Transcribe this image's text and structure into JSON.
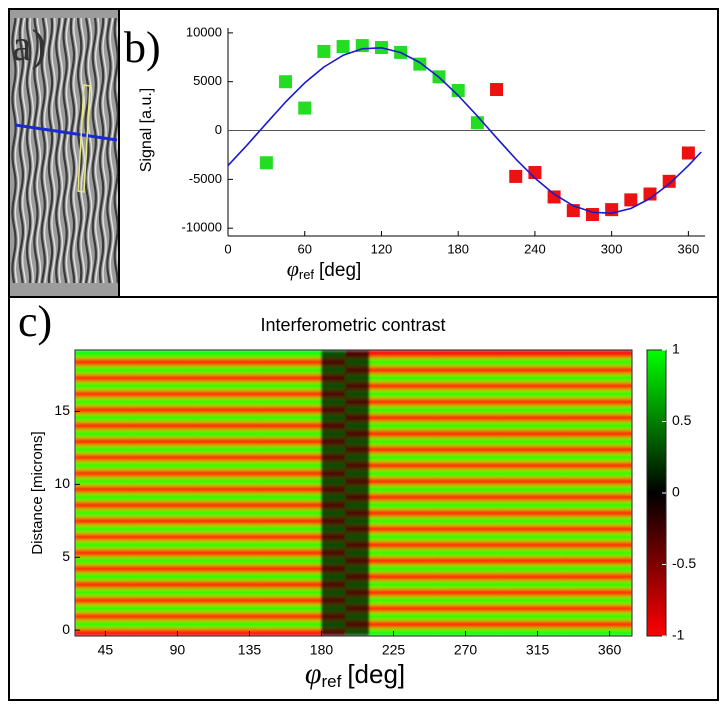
{
  "chart_data": [
    {
      "type": "image",
      "panel_label": "a)"
    },
    {
      "type": "scatter",
      "panel_label": "b)",
      "ylabel": "Signal [a.u.]",
      "xlabel": {
        "symbol": "φ",
        "subscript": "ref",
        "unit": "[deg]"
      },
      "xlim": [
        0,
        373
      ],
      "xticks": [
        0,
        60,
        120,
        180,
        240,
        300,
        360
      ],
      "ylim": [
        -10800,
        10500
      ],
      "yticks": [
        -10000,
        -5000,
        0,
        5000,
        10000
      ],
      "reference_line": 0,
      "series": [
        {
          "color": "#22dd22",
          "x": [
            30,
            45,
            60,
            75,
            90,
            105,
            120,
            135,
            150,
            165,
            180,
            195
          ],
          "values": [
            -3300,
            5000,
            2300,
            8100,
            8600,
            8700,
            8500,
            8000,
            6800,
            5500,
            4100,
            800
          ]
        },
        {
          "color": "#ee1111",
          "x": [
            210,
            225,
            240,
            255,
            270,
            285,
            300,
            315,
            330,
            345,
            360
          ],
          "values": [
            4200,
            -4700,
            -4300,
            -6800,
            -8200,
            -8600,
            -8100,
            -7100,
            -6500,
            -5200,
            -2300
          ]
        },
        {
          "type": "line",
          "color": "#1a1acc",
          "x": [
            0,
            15,
            30,
            45,
            60,
            75,
            90,
            105,
            120,
            135,
            150,
            165,
            180,
            195,
            210,
            225,
            240,
            255,
            270,
            285,
            300,
            315,
            330,
            345,
            360,
            370
          ],
          "values": [
            -3592,
            -1476,
            741,
            2907,
            4875,
            6511,
            7704,
            8371,
            8468,
            7987,
            6963,
            5464,
            3592,
            1476,
            -741,
            -2907,
            -4875,
            -6511,
            -7704,
            -8371,
            -8468,
            -7987,
            -6963,
            -5464,
            -3592,
            -2200
          ]
        }
      ]
    },
    {
      "type": "heatmap",
      "panel_label": "c)",
      "title": "Interferometric contrast",
      "ylabel": "Distance [microns]",
      "xlabel": {
        "symbol": "φ",
        "subscript": "ref",
        "unit": "[deg]"
      },
      "xlim": [
        26,
        374
      ],
      "xticks": [
        45,
        90,
        135,
        180,
        225,
        270,
        315,
        360
      ],
      "ylim": [
        -0.4,
        19.22
      ],
      "yticks": [
        0,
        5,
        10,
        15
      ],
      "clim": [
        -1,
        1
      ],
      "cticks": [
        1,
        0.5,
        0,
        -0.5,
        -1
      ],
      "colormap": [
        "#ff0000",
        "#000000",
        "#00ff00"
      ],
      "x_edges": [
        26,
        60,
        100,
        140,
        180,
        195,
        210,
        250,
        290,
        330,
        374
      ],
      "y_edges": [
        -0.4,
        0.145,
        0.69,
        1.235,
        1.78,
        2.325,
        2.87,
        3.415,
        3.96,
        4.505,
        5.05,
        5.595,
        6.14,
        6.685,
        7.23,
        7.775,
        8.32,
        8.865,
        9.41,
        9.955,
        10.5,
        11.045,
        11.59,
        12.135,
        12.68,
        13.225,
        13.77,
        14.315,
        14.86,
        15.405,
        15.95,
        16.495,
        17.04,
        17.585,
        18.13,
        18.675,
        19.22
      ],
      "z": [
        [
          -1,
          -1,
          -1,
          -1,
          -0.3,
          0.3,
          1,
          1,
          1,
          1
        ],
        [
          1,
          1,
          1,
          1,
          0.3,
          -0.3,
          -1,
          -1,
          -1,
          -1
        ],
        [
          -1,
          -1,
          -1,
          -1,
          -0.3,
          0.3,
          1,
          1,
          1,
          1
        ],
        [
          1,
          1,
          1,
          1,
          0.3,
          -0.3,
          -1,
          -1,
          -1,
          -1
        ],
        [
          -1,
          -1,
          -1,
          -1,
          -0.3,
          0.3,
          1,
          1,
          1,
          1
        ],
        [
          1,
          1,
          1,
          1,
          0.3,
          -0.3,
          -1,
          -1,
          -1,
          -1
        ],
        [
          -1,
          -1,
          -1,
          -1,
          -0.3,
          0.3,
          1,
          1,
          1,
          1
        ],
        [
          1,
          1,
          1,
          1,
          0.3,
          -0.3,
          -1,
          -1,
          -1,
          -1
        ],
        [
          -1,
          -1,
          -1,
          -1,
          -0.3,
          0.3,
          1,
          1,
          1,
          1
        ],
        [
          1,
          1,
          1,
          1,
          0.3,
          -0.3,
          -1,
          -1,
          -1,
          -1
        ],
        [
          -1,
          -1,
          -1,
          -1,
          -0.3,
          0.3,
          1,
          1,
          1,
          1
        ],
        [
          1,
          1,
          1,
          1,
          0.3,
          -0.3,
          -1,
          -1,
          -1,
          -1
        ],
        [
          -1,
          -1,
          -1,
          -1,
          -0.3,
          0.3,
          1,
          1,
          1,
          1
        ],
        [
          1,
          1,
          1,
          1,
          0.3,
          -0.3,
          -1,
          -1,
          -1,
          -1
        ],
        [
          -1,
          -1,
          -1,
          -1,
          -0.3,
          0.3,
          1,
          1,
          1,
          1
        ],
        [
          1,
          1,
          1,
          1,
          0.3,
          -0.3,
          -1,
          -1,
          -1,
          -1
        ],
        [
          -1,
          -1,
          -1,
          -1,
          -0.3,
          0.3,
          1,
          1,
          1,
          1
        ],
        [
          1,
          1,
          1,
          1,
          0.3,
          -0.3,
          -1,
          -1,
          -1,
          -1
        ],
        [
          -1,
          -1,
          -1,
          -1,
          -0.3,
          0.3,
          1,
          1,
          1,
          1
        ],
        [
          1,
          1,
          1,
          1,
          0.3,
          -0.3,
          -1,
          -1,
          -1,
          -1
        ],
        [
          -1,
          -1,
          -1,
          -1,
          -0.3,
          0.3,
          1,
          1,
          1,
          1
        ],
        [
          1,
          1,
          1,
          1,
          0.3,
          -0.3,
          -1,
          -1,
          -1,
          -1
        ],
        [
          -1,
          -1,
          -1,
          -1,
          -0.3,
          0.3,
          1,
          1,
          1,
          1
        ],
        [
          1,
          1,
          1,
          1,
          0.3,
          -0.3,
          -1,
          -1,
          -1,
          -1
        ],
        [
          -1,
          -1,
          -1,
          -1,
          -0.3,
          0.3,
          1,
          1,
          1,
          1
        ],
        [
          1,
          1,
          1,
          1,
          0.3,
          -0.3,
          -1,
          -1,
          -1,
          -1
        ],
        [
          -1,
          -1,
          -1,
          -1,
          -0.3,
          0.3,
          1,
          1,
          1,
          1
        ],
        [
          1,
          1,
          1,
          1,
          0.3,
          -0.3,
          -1,
          -1,
          -1,
          -1
        ],
        [
          -1,
          -1,
          -1,
          -1,
          -0.3,
          0.3,
          1,
          1,
          1,
          1
        ],
        [
          1,
          1,
          1,
          1,
          0.3,
          -0.3,
          -1,
          -1,
          -1,
          -1
        ],
        [
          -1,
          -1,
          -1,
          -1,
          -0.3,
          0.3,
          1,
          1,
          1,
          1
        ],
        [
          1,
          1,
          1,
          1,
          0.3,
          -0.3,
          -1,
          -1,
          -1,
          -1
        ],
        [
          -1,
          -1,
          -1,
          -1,
          -0.3,
          0.3,
          1,
          1,
          1,
          1
        ],
        [
          1,
          1,
          1,
          1,
          0.3,
          -0.3,
          -1,
          -1,
          -1,
          -1
        ],
        [
          -1,
          -1,
          -1,
          -1,
          -0.3,
          0.3,
          1,
          1,
          1,
          1
        ],
        [
          1,
          1,
          1,
          1,
          0.3,
          -0.3,
          -1,
          -1,
          -1,
          -1
        ]
      ]
    }
  ]
}
